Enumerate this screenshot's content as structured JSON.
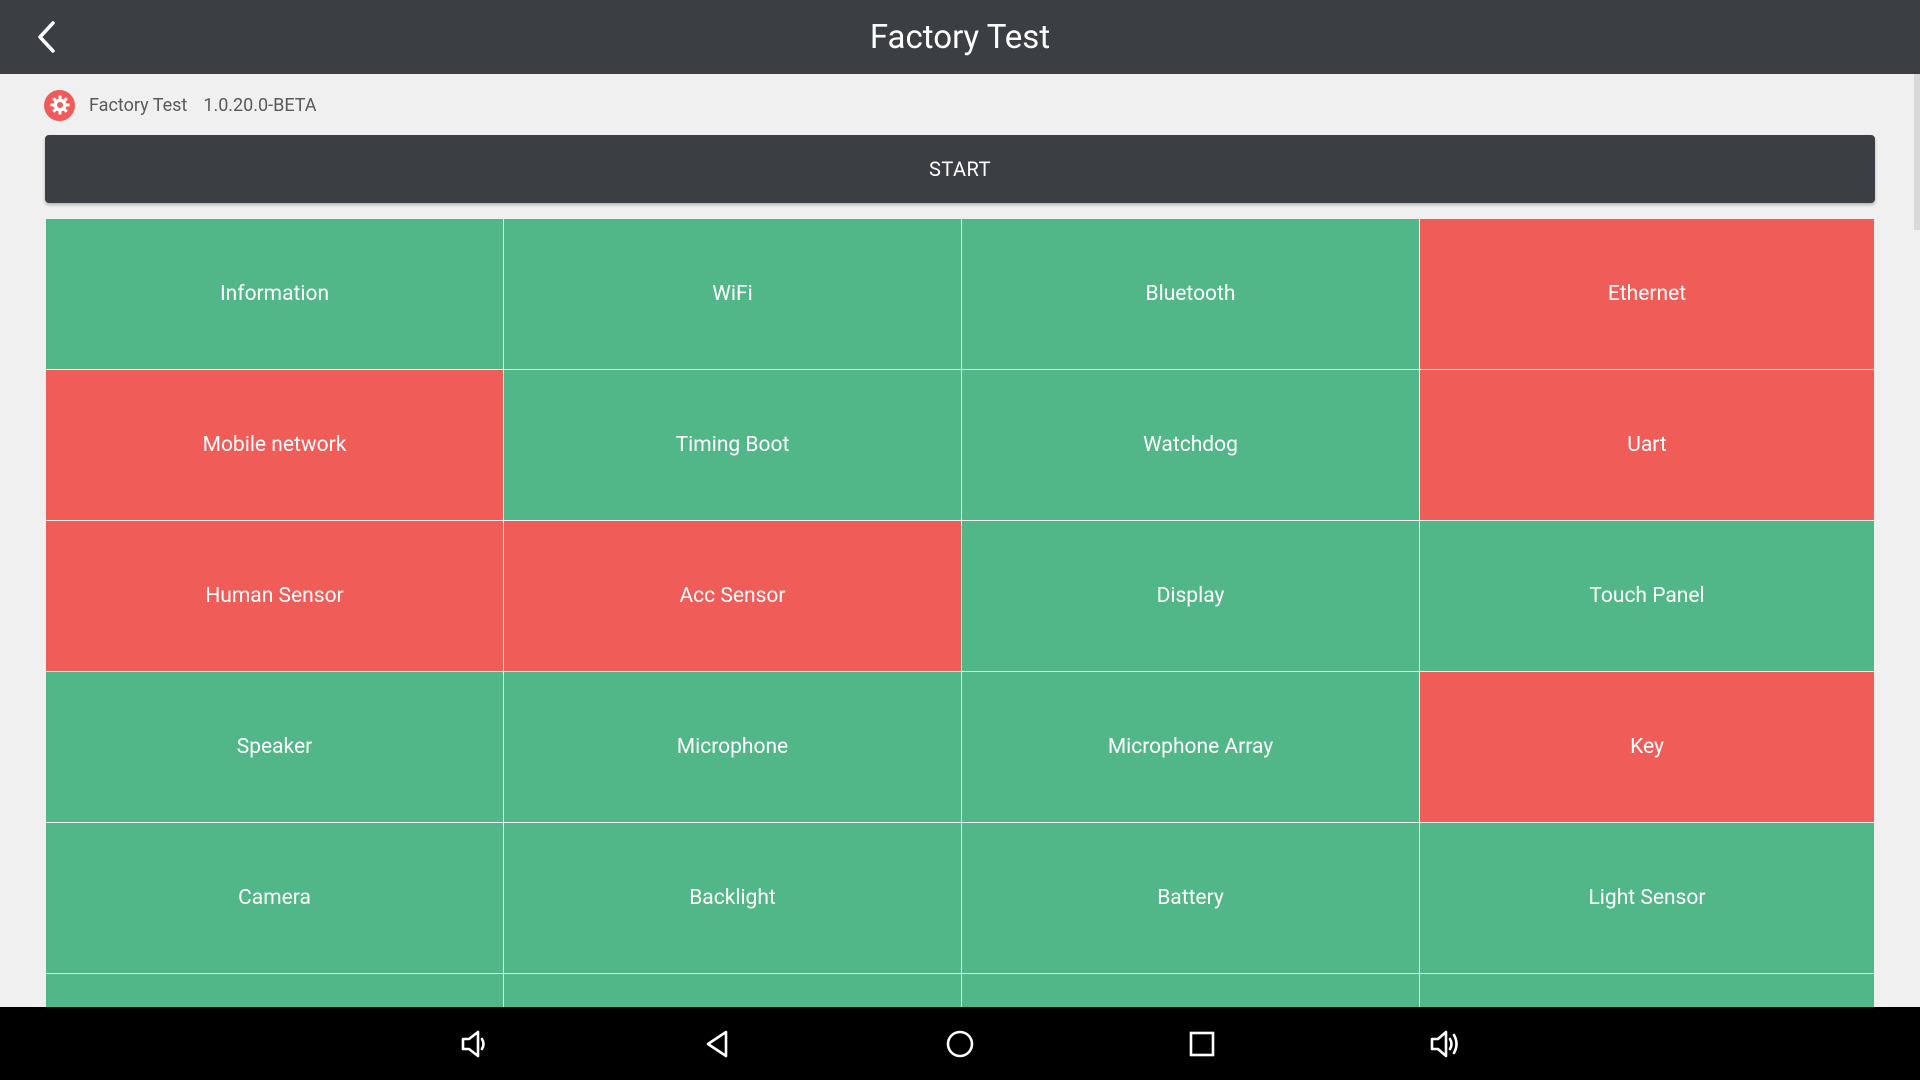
{
  "appbar": {
    "title": "Factory Test",
    "back_icon": "back-arrow-icon"
  },
  "info": {
    "app_name": "Factory Test",
    "version": "1.0.20.0-BETA",
    "logo_icon": "gear-icon"
  },
  "start_label": "START",
  "colors": {
    "pass": "#52b788",
    "fail": "#f05c58",
    "bar": "#3b3e42"
  },
  "tiles": [
    {
      "label": "Information",
      "status": "pass"
    },
    {
      "label": "WiFi",
      "status": "pass"
    },
    {
      "label": "Bluetooth",
      "status": "pass"
    },
    {
      "label": "Ethernet",
      "status": "fail"
    },
    {
      "label": "Mobile network",
      "status": "fail"
    },
    {
      "label": "Timing Boot",
      "status": "pass"
    },
    {
      "label": "Watchdog",
      "status": "pass"
    },
    {
      "label": "Uart",
      "status": "fail"
    },
    {
      "label": "Human Sensor",
      "status": "fail"
    },
    {
      "label": "Acc Sensor",
      "status": "fail"
    },
    {
      "label": "Display",
      "status": "pass"
    },
    {
      "label": "Touch Panel",
      "status": "pass"
    },
    {
      "label": "Speaker",
      "status": "pass"
    },
    {
      "label": "Microphone",
      "status": "pass"
    },
    {
      "label": "Microphone Array",
      "status": "pass"
    },
    {
      "label": "Key",
      "status": "fail"
    },
    {
      "label": "Camera",
      "status": "pass"
    },
    {
      "label": "Backlight",
      "status": "pass"
    },
    {
      "label": "Battery",
      "status": "pass"
    },
    {
      "label": "Light Sensor",
      "status": "pass"
    },
    {
      "label": "",
      "status": "pass"
    },
    {
      "label": "",
      "status": "pass"
    },
    {
      "label": "",
      "status": "pass"
    },
    {
      "label": "",
      "status": "pass"
    }
  ],
  "navbar": {
    "icons": [
      "volume-down-icon",
      "back-icon",
      "home-icon",
      "recents-icon",
      "volume-up-icon"
    ]
  }
}
